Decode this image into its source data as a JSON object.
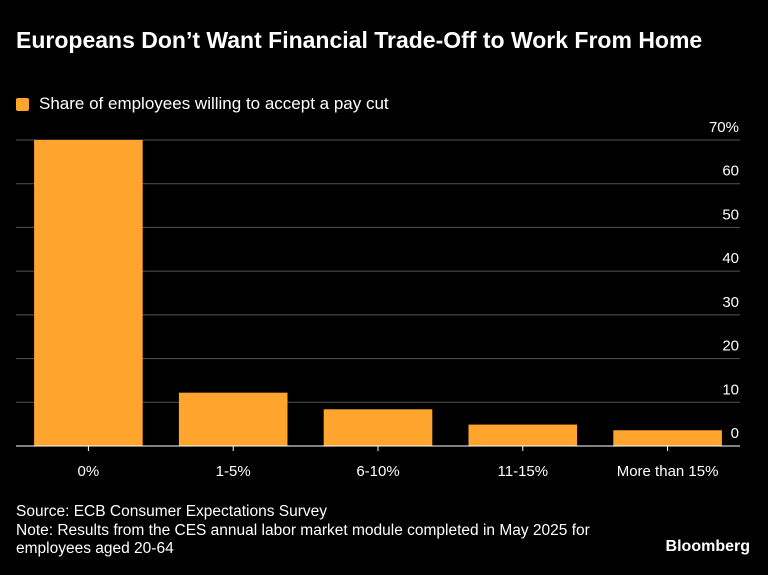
{
  "title": "Europeans Don’t Want Financial Trade-Off to Work From Home",
  "legend": {
    "label": "Share of employees willing to accept a pay cut",
    "color": "#ffa42c"
  },
  "chart_data": {
    "type": "bar",
    "categories": [
      "0%",
      "1-5%",
      "6-10%",
      "11-15%",
      "More than 15%"
    ],
    "series": [
      {
        "name": "Share of employees willing to accept a pay cut",
        "values": [
          70,
          12.2,
          8.4,
          4.9,
          3.6
        ]
      }
    ],
    "y_ticks": [
      0,
      10,
      20,
      30,
      40,
      50,
      60,
      70
    ],
    "y_tick_labels": [
      "0",
      "10",
      "20",
      "30",
      "40",
      "50",
      "60",
      "70%"
    ],
    "ylim": [
      0,
      70
    ],
    "grid": true,
    "y_axis_side": "right",
    "bar_color": "#ffa42c",
    "grid_color": "#555555"
  },
  "footer": {
    "source": "Source: ECB Consumer Expectations Survey",
    "note_line1": "Note: Results from the CES annual labor market module completed in May 2025 for",
    "note_line2": "employees aged 20-64"
  },
  "brand": "Bloomberg"
}
